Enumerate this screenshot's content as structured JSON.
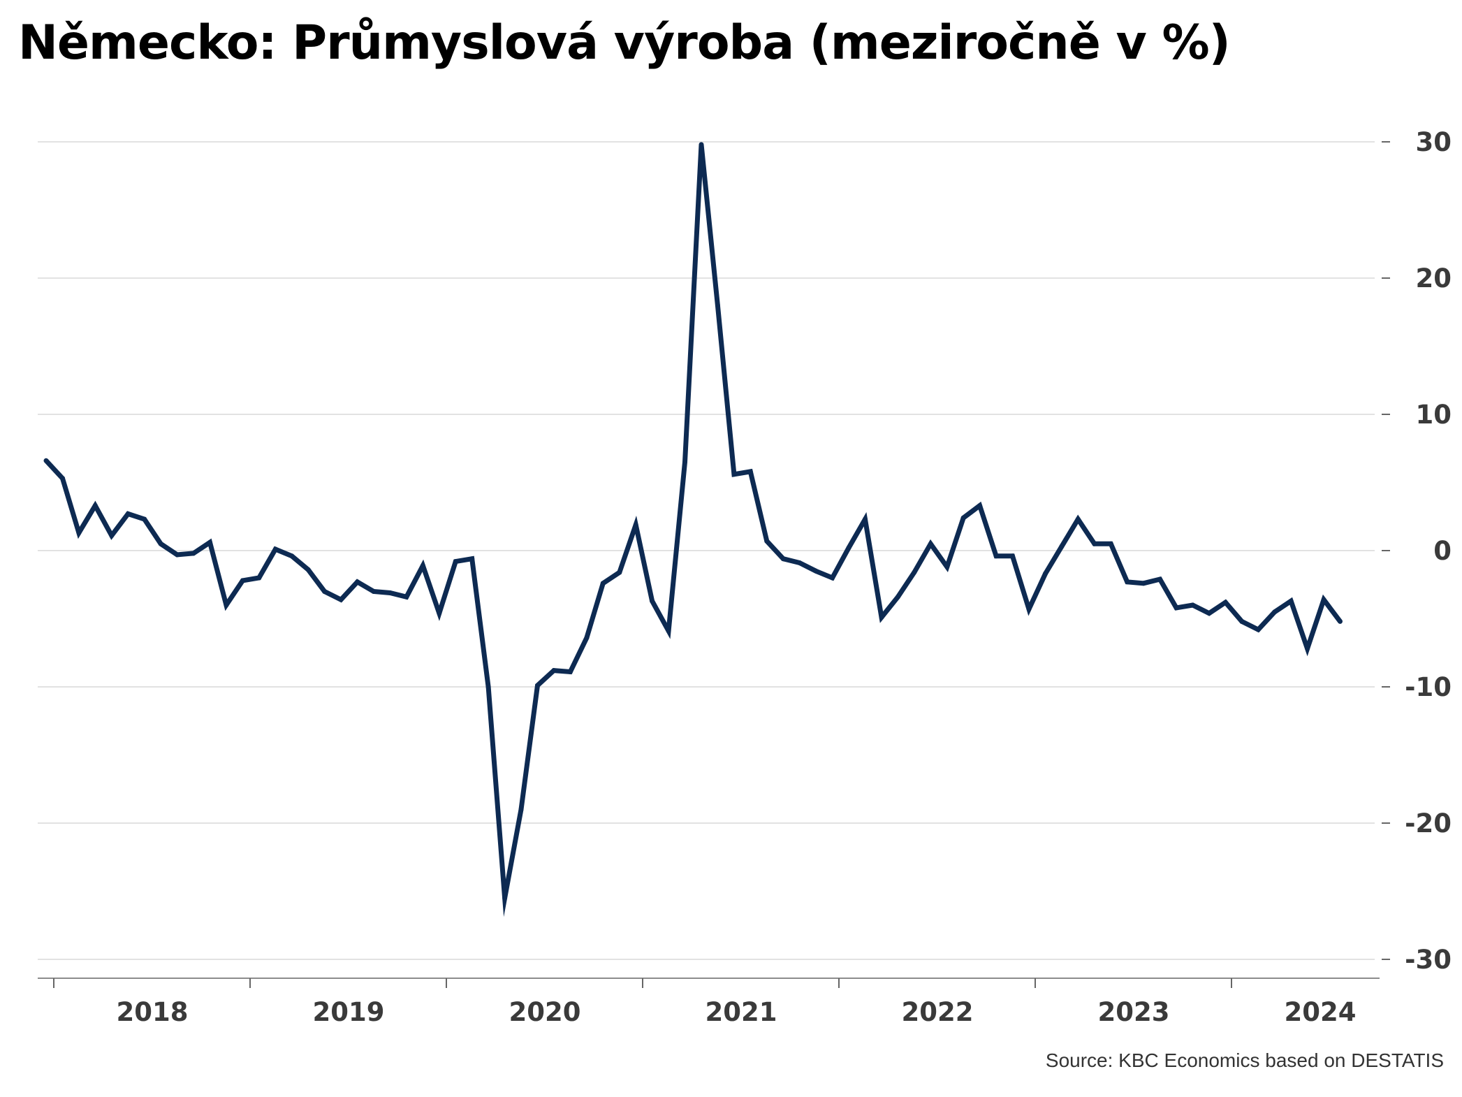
{
  "title": "Německo: Průmyslová výroba (meziročně v %)",
  "source": "Source: KBC Economics based on DESTATIS",
  "colors": {
    "line": "#0d2a52",
    "grid": "#d9d9d9",
    "axis": "#666666",
    "text": "#3a3a3a"
  },
  "chart_data": {
    "type": "line",
    "title": "Německo: Průmyslová výroba (meziročně v %)",
    "xlabel": "",
    "ylabel": "",
    "y_axis_position": "right",
    "ylim": [
      -31.5,
      31
    ],
    "yticks": [
      30,
      20,
      10,
      0,
      -10,
      -20,
      -30
    ],
    "ytick_labels": [
      "30",
      "20",
      "10",
      "0",
      "-10",
      "-20",
      "-30"
    ],
    "year_labels": [
      "2018",
      "2019",
      "2020",
      "2021",
      "2022",
      "2023",
      "2024"
    ],
    "grid": true,
    "legend": "none",
    "x_start": "2017-12",
    "series": [
      {
        "values": [
          6.6,
          5.3,
          1.3,
          3.3,
          1.1,
          2.7,
          2.3,
          0.5,
          -0.3,
          -0.2,
          0.6,
          -4.0,
          -2.2,
          -2.0,
          0.1,
          -0.4,
          -1.4,
          -3.0,
          -3.6,
          -2.3,
          -3.0,
          -3.1,
          -3.4,
          -1.1,
          -4.6,
          -0.8,
          -0.6,
          -10.0,
          -25.5,
          -19.0,
          -9.9,
          -8.8,
          -8.9,
          -6.4,
          -2.4,
          -1.6,
          1.9,
          -3.7,
          -5.9,
          6.5,
          29.8,
          18.0,
          5.6,
          5.8,
          0.7,
          -0.6,
          -0.9,
          -1.5,
          -2.0,
          0.2,
          2.3,
          -4.9,
          -3.4,
          -1.6,
          0.5,
          -1.2,
          2.4,
          3.3,
          -0.4,
          -0.4,
          -4.3,
          -1.7,
          0.3,
          2.3,
          0.5,
          0.5,
          -2.3,
          -2.4,
          -2.1,
          -4.2,
          -4.0,
          -4.6,
          -3.8,
          -5.2,
          -5.8,
          -4.5,
          -3.7,
          -7.2,
          -3.6,
          -5.2
        ]
      }
    ]
  }
}
